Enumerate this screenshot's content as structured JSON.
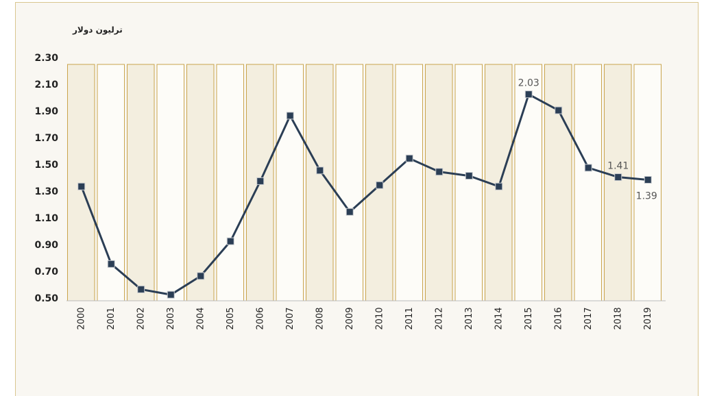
{
  "chart_data": {
    "type": "line",
    "y_axis_label": "ترليون دولار",
    "categories": [
      "2000",
      "2001",
      "2002",
      "2003",
      "2004",
      "2005",
      "2006",
      "2007",
      "2008",
      "2009",
      "2010",
      "2011",
      "2012",
      "2013",
      "2014",
      "2015",
      "2016",
      "2017",
      "2018",
      "2019"
    ],
    "values": [
      1.34,
      0.76,
      0.57,
      0.53,
      0.67,
      0.93,
      1.38,
      1.87,
      1.46,
      1.15,
      1.35,
      1.55,
      1.45,
      1.42,
      1.34,
      2.03,
      1.91,
      1.48,
      1.41,
      1.39
    ],
    "value_labels": [
      null,
      null,
      null,
      null,
      null,
      null,
      null,
      null,
      null,
      null,
      null,
      null,
      null,
      null,
      null,
      "2.03",
      null,
      null,
      "1.41",
      "1.39"
    ],
    "color": "#2b3e55",
    "ylim": [
      0.5,
      2.3
    ],
    "yticks": [
      {
        "value": 0.5,
        "label": "0.50"
      },
      {
        "value": 0.7,
        "label": "0.70"
      },
      {
        "value": 0.9,
        "label": "0.90"
      },
      {
        "value": 1.1,
        "label": "1.10"
      },
      {
        "value": 1.3,
        "label": "1.30"
      },
      {
        "value": 1.5,
        "label": "1.50"
      },
      {
        "value": 1.7,
        "label": "1.70"
      },
      {
        "value": 1.9,
        "label": "1.90"
      },
      {
        "value": 2.1,
        "label": "2.10"
      },
      {
        "value": 2.3,
        "label": "2.30"
      }
    ]
  }
}
